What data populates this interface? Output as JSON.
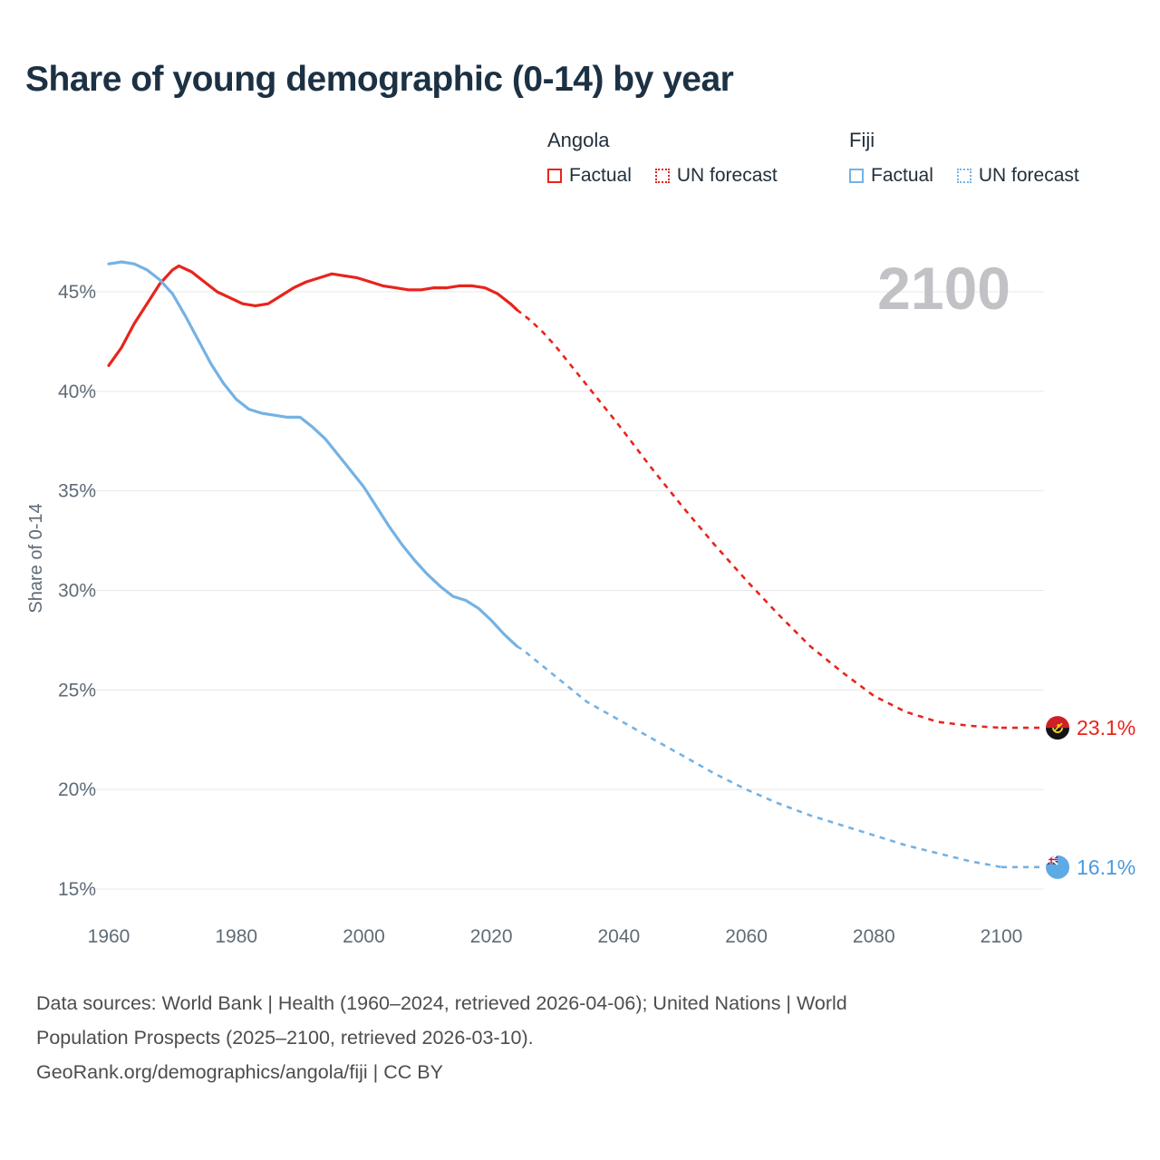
{
  "legend": {
    "groups": [
      {
        "name": "Angola",
        "color": "#e8241c",
        "items": [
          {
            "label": "Factual",
            "style": "solid"
          },
          {
            "label": "UN forecast",
            "style": "dotted"
          }
        ]
      },
      {
        "name": "Fiji",
        "color": "#74b2e4",
        "items": [
          {
            "label": "Factual",
            "style": "solid"
          },
          {
            "label": "UN forecast",
            "style": "dotted"
          }
        ]
      }
    ]
  },
  "footer": {
    "lines": [
      "Data sources: World Bank | Health (1960–2024, retrieved 2026-04-06); United Nations | World",
      "Population Prospects (2025–2100, retrieved 2026-03-10).",
      "GeoRank.org/demographics/angola/fiji | CC BY"
    ]
  },
  "chart_data": {
    "type": "line",
    "title": "Share of young demographic (0-14) by year",
    "xlabel": "",
    "ylabel": "Share of 0-14",
    "watermark": "2100",
    "x_ticks": [
      1960,
      1980,
      2000,
      2020,
      2040,
      2060,
      2080,
      2100
    ],
    "y_ticks": [
      15,
      20,
      25,
      30,
      35,
      40,
      45
    ],
    "y_tick_suffix": "%",
    "xlim": [
      1960,
      2100
    ],
    "ylim": [
      15,
      45
    ],
    "grid": "horizontal",
    "legend_position": "top-right",
    "series": [
      {
        "name": "Angola Factual",
        "color": "#e8241c",
        "style": "solid",
        "points": [
          [
            1960,
            41.3
          ],
          [
            1962,
            42.2
          ],
          [
            1964,
            43.4
          ],
          [
            1966,
            44.4
          ],
          [
            1968,
            45.4
          ],
          [
            1970,
            46.1
          ],
          [
            1971,
            46.3
          ],
          [
            1973,
            46.0
          ],
          [
            1975,
            45.5
          ],
          [
            1977,
            45.0
          ],
          [
            1979,
            44.7
          ],
          [
            1981,
            44.4
          ],
          [
            1983,
            44.3
          ],
          [
            1985,
            44.4
          ],
          [
            1987,
            44.8
          ],
          [
            1989,
            45.2
          ],
          [
            1991,
            45.5
          ],
          [
            1993,
            45.7
          ],
          [
            1995,
            45.9
          ],
          [
            1997,
            45.8
          ],
          [
            1999,
            45.7
          ],
          [
            2001,
            45.5
          ],
          [
            2003,
            45.3
          ],
          [
            2005,
            45.2
          ],
          [
            2007,
            45.1
          ],
          [
            2009,
            45.1
          ],
          [
            2011,
            45.2
          ],
          [
            2013,
            45.2
          ],
          [
            2015,
            45.3
          ],
          [
            2017,
            45.3
          ],
          [
            2019,
            45.2
          ],
          [
            2021,
            44.9
          ],
          [
            2023,
            44.4
          ],
          [
            2024,
            44.1
          ]
        ]
      },
      {
        "name": "Angola UN forecast",
        "color": "#e8241c",
        "style": "dashed",
        "points": [
          [
            2024,
            44.1
          ],
          [
            2026,
            43.6
          ],
          [
            2028,
            43.0
          ],
          [
            2030,
            42.3
          ],
          [
            2035,
            40.3
          ],
          [
            2040,
            38.3
          ],
          [
            2045,
            36.2
          ],
          [
            2050,
            34.2
          ],
          [
            2055,
            32.3
          ],
          [
            2060,
            30.5
          ],
          [
            2065,
            28.8
          ],
          [
            2070,
            27.2
          ],
          [
            2075,
            25.9
          ],
          [
            2080,
            24.7
          ],
          [
            2085,
            23.9
          ],
          [
            2090,
            23.4
          ],
          [
            2095,
            23.2
          ],
          [
            2100,
            23.1
          ]
        ],
        "end_label": {
          "text": "23.1%",
          "flag": "angola",
          "color": "#e8241c"
        }
      },
      {
        "name": "Fiji Factual",
        "color": "#74b2e4",
        "style": "solid",
        "points": [
          [
            1960,
            46.4
          ],
          [
            1962,
            46.5
          ],
          [
            1964,
            46.4
          ],
          [
            1966,
            46.1
          ],
          [
            1968,
            45.6
          ],
          [
            1970,
            44.9
          ],
          [
            1972,
            43.8
          ],
          [
            1974,
            42.6
          ],
          [
            1976,
            41.4
          ],
          [
            1978,
            40.4
          ],
          [
            1980,
            39.6
          ],
          [
            1982,
            39.1
          ],
          [
            1984,
            38.9
          ],
          [
            1986,
            38.8
          ],
          [
            1988,
            38.7
          ],
          [
            1990,
            38.7
          ],
          [
            1992,
            38.2
          ],
          [
            1994,
            37.6
          ],
          [
            1996,
            36.8
          ],
          [
            1998,
            36.0
          ],
          [
            2000,
            35.2
          ],
          [
            2002,
            34.2
          ],
          [
            2004,
            33.2
          ],
          [
            2006,
            32.3
          ],
          [
            2008,
            31.5
          ],
          [
            2010,
            30.8
          ],
          [
            2012,
            30.2
          ],
          [
            2014,
            29.7
          ],
          [
            2016,
            29.5
          ],
          [
            2018,
            29.1
          ],
          [
            2020,
            28.5
          ],
          [
            2022,
            27.8
          ],
          [
            2024,
            27.2
          ]
        ]
      },
      {
        "name": "Fiji UN forecast",
        "color": "#74b2e4",
        "style": "dashed",
        "points": [
          [
            2024,
            27.2
          ],
          [
            2025,
            27.0
          ],
          [
            2030,
            25.7
          ],
          [
            2035,
            24.4
          ],
          [
            2040,
            23.5
          ],
          [
            2045,
            22.6
          ],
          [
            2050,
            21.7
          ],
          [
            2055,
            20.8
          ],
          [
            2060,
            20.0
          ],
          [
            2065,
            19.3
          ],
          [
            2070,
            18.7
          ],
          [
            2075,
            18.2
          ],
          [
            2080,
            17.7
          ],
          [
            2085,
            17.2
          ],
          [
            2090,
            16.8
          ],
          [
            2095,
            16.4
          ],
          [
            2100,
            16.1
          ]
        ],
        "end_label": {
          "text": "16.1%",
          "flag": "fiji",
          "color": "#4a9ade"
        }
      }
    ]
  }
}
